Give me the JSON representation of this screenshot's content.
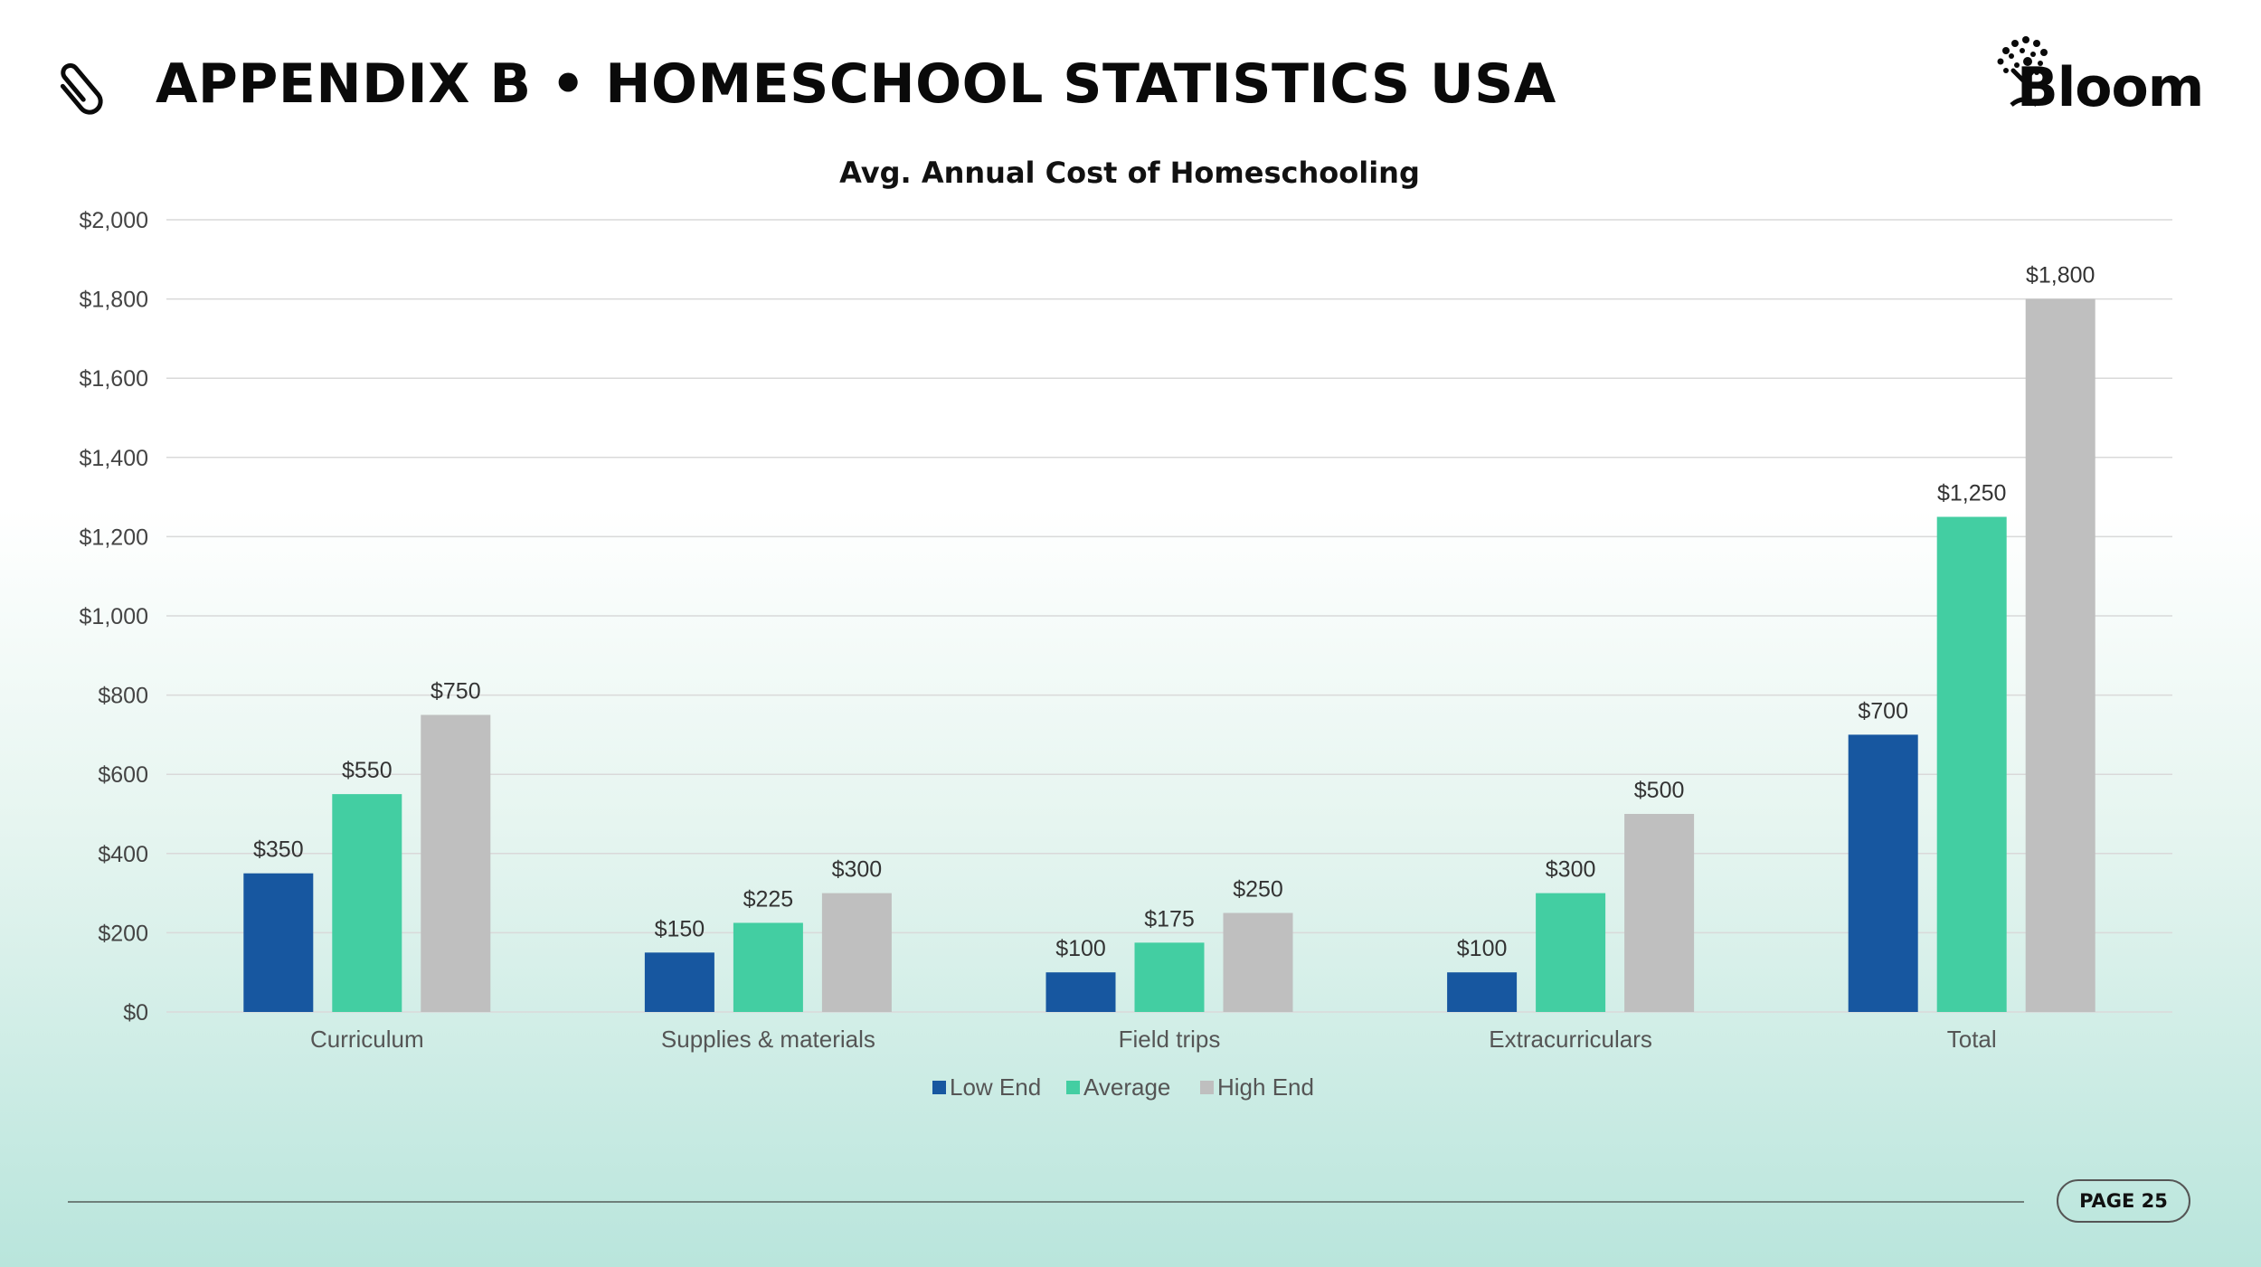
{
  "header": {
    "title": "APPENDIX B • HOMESCHOOL STATISTICS USA",
    "logo_text": "Bloom",
    "clip_icon": "paperclip-icon",
    "logo_icon": "tree-icon"
  },
  "footer": {
    "page_label": "PAGE 25"
  },
  "colors": {
    "low_end": "#1757a0",
    "average": "#43cea2",
    "high_end": "#bfbfbf",
    "grid": "#d9d9d9"
  },
  "chart_data": {
    "type": "bar",
    "title": "Avg. Annual Cost of Homeschooling",
    "categories": [
      "Curriculum",
      "Supplies & materials",
      "Field trips",
      "Extracurriculars",
      "Total"
    ],
    "series": [
      {
        "name": "Low End",
        "values": [
          350,
          150,
          100,
          100,
          700
        ]
      },
      {
        "name": "Average",
        "values": [
          550,
          225,
          175,
          300,
          1250
        ]
      },
      {
        "name": "High End",
        "values": [
          750,
          300,
          250,
          500,
          1800
        ]
      }
    ],
    "data_labels": [
      [
        "$350",
        "$150",
        "$100",
        "$100",
        "$700"
      ],
      [
        "$550",
        "$225",
        "$175",
        "$300",
        "$1,250"
      ],
      [
        "$750",
        "$300",
        "$250",
        "$500",
        "$1,800"
      ]
    ],
    "ylim": [
      0,
      2000
    ],
    "yticks": [
      0,
      200,
      400,
      600,
      800,
      1000,
      1200,
      1400,
      1600,
      1800,
      2000
    ],
    "ytick_labels": [
      "$0",
      "$200",
      "$400",
      "$600",
      "$800",
      "$1,000",
      "$1,200",
      "$1,400",
      "$1,600",
      "$1,800",
      "$2,000"
    ],
    "xlabel": "",
    "ylabel": "",
    "grid": true,
    "legend": "bottom-center"
  }
}
